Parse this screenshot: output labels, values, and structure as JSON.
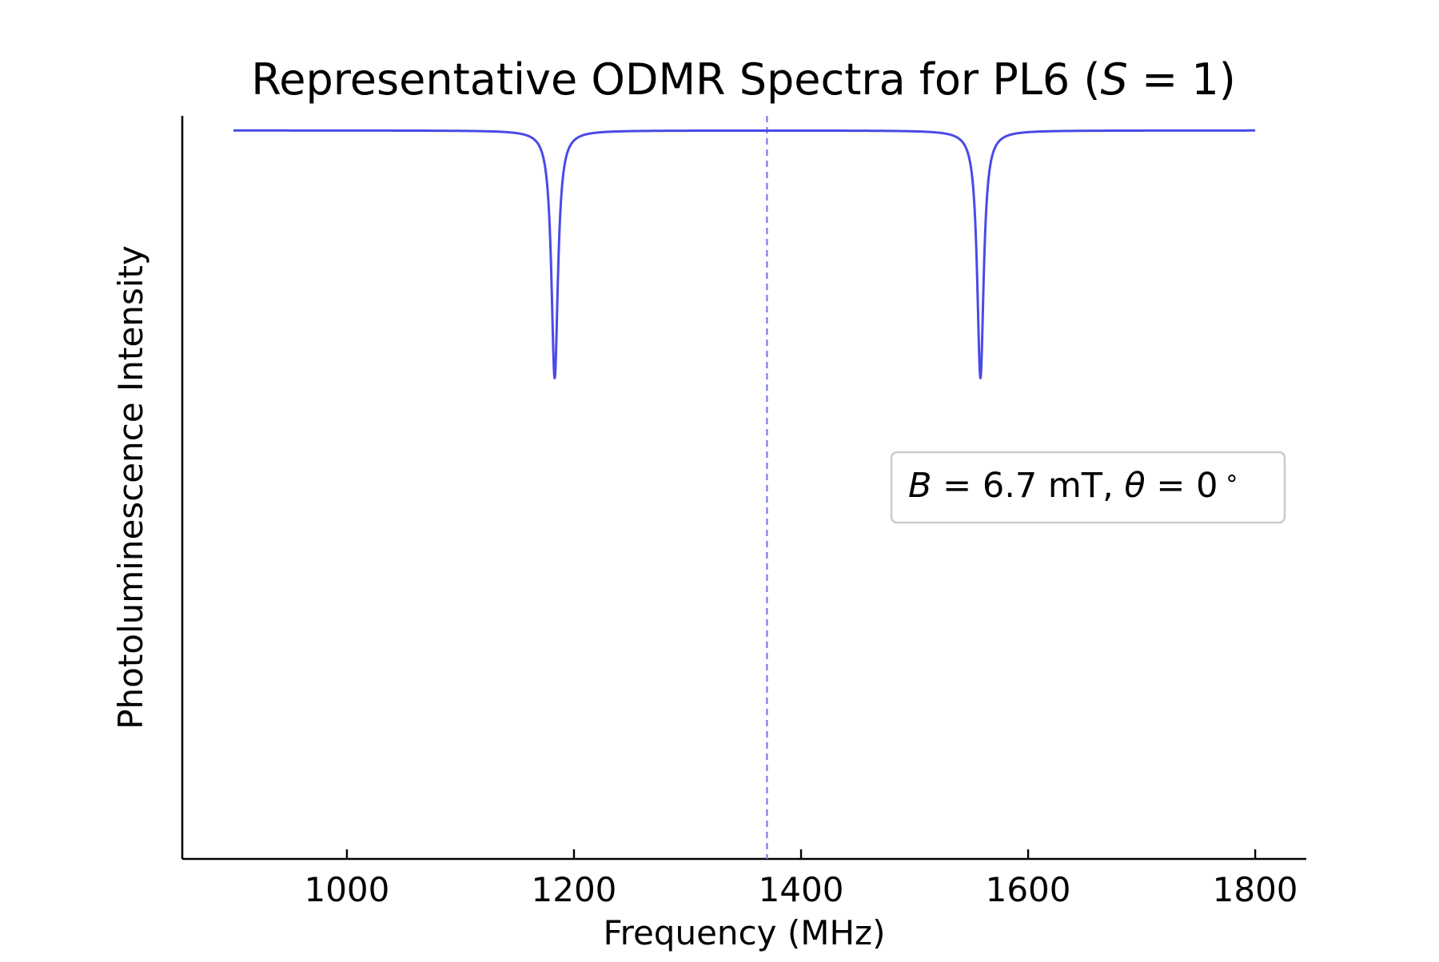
{
  "chart_data": {
    "type": "line",
    "title": {
      "prefix": "Representative ODMR Spectra for PL6 (",
      "math_var": "S",
      "math_rest": " = 1",
      "suffix": ")"
    },
    "xlabel": "Frequency (MHz)",
    "ylabel": "Photoluminescence Intensity",
    "xlim": [
      855,
      1845
    ],
    "ylim": [
      0,
      1.02
    ],
    "xticks": [
      1000,
      1200,
      1400,
      1600,
      1800
    ],
    "yticks": [],
    "grid": false,
    "legend": null,
    "series": [
      {
        "x_range": [
          900,
          1800
        ],
        "baseline": 1.0,
        "dips": [
          {
            "center": 1183,
            "depth": 0.34,
            "width": 3.5
          },
          {
            "center": 1558,
            "depth": 0.34,
            "width": 3.5
          }
        ],
        "color": "#4a4ae8"
      }
    ],
    "reference_line": {
      "x": 1370,
      "style": "dashed",
      "color": "#7a7aef"
    },
    "annotation": {
      "b_var": "B",
      "b_value": " = 6.7 mT, ",
      "theta_var": "θ",
      "theta_value": " = 0",
      "degree": "∘",
      "placement": "right-middle"
    }
  }
}
